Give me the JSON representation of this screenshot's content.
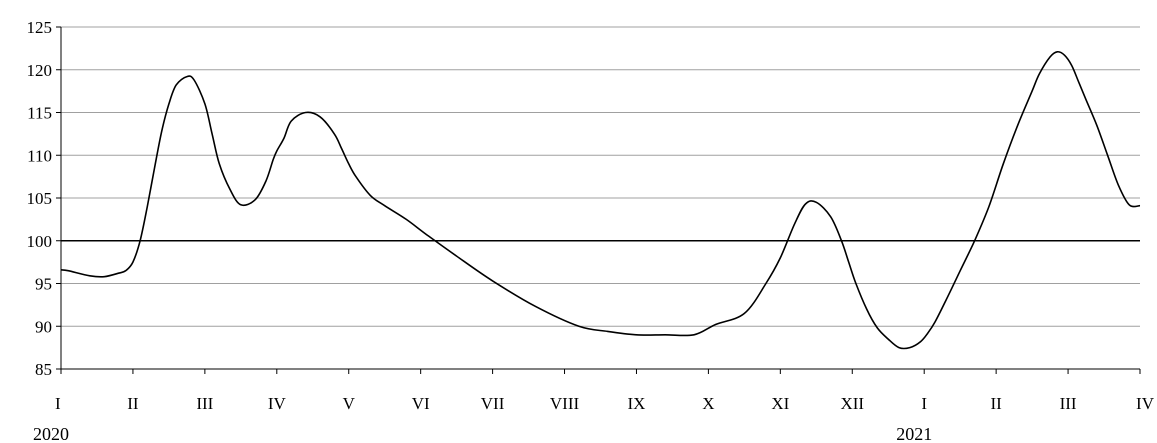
{
  "chart_data": {
    "type": "line",
    "title": "",
    "xlabel": "",
    "ylabel": "",
    "ylim": [
      85,
      125
    ],
    "y_ticks": [
      85,
      90,
      95,
      100,
      105,
      110,
      115,
      120,
      125
    ],
    "x_tick_labels": [
      "I",
      "II",
      "III",
      "IV",
      "V",
      "VI",
      "VII",
      "VIII",
      "IX",
      "X",
      "XI",
      "XII",
      "I",
      "II",
      "III",
      "IV"
    ],
    "year_labels": [
      {
        "label": "2020",
        "at_month_index": 0
      },
      {
        "label": "2021",
        "at_month_index": 12
      }
    ],
    "reference_line": 100,
    "grid": true,
    "legend": "none",
    "line_color": "#000000",
    "grid_color": "#a0a0a0",
    "series": [
      {
        "x": [
          0,
          0.1,
          0.4,
          0.6,
          0.8,
          0.9,
          1.0,
          1.1,
          1.2,
          1.3,
          1.4,
          1.5,
          1.6,
          1.75,
          1.85,
          2.0,
          2.1,
          2.2,
          2.35,
          2.5,
          2.7,
          2.85,
          2.95,
          3.0,
          3.1,
          3.2,
          3.4,
          3.6,
          3.8,
          3.9,
          4.0,
          4.1,
          4.3,
          4.5,
          4.8,
          5.1,
          5.5,
          6.0,
          6.6,
          7.2,
          7.6,
          8.0,
          8.4,
          8.8,
          9.1,
          9.5,
          9.8,
          10.0,
          10.2,
          10.35,
          10.5,
          10.7,
          10.85,
          10.95,
          11.05,
          11.2,
          11.35,
          11.5,
          11.65,
          11.8,
          11.95,
          12.05,
          12.15,
          12.3,
          12.5,
          12.7,
          12.9,
          13.1,
          13.3,
          13.5,
          13.6,
          13.75,
          13.85,
          13.95,
          14.05,
          14.15,
          14.25,
          14.4,
          14.55,
          14.7,
          14.85,
          15.0
        ],
        "values": [
          96.6,
          96.5,
          95.9,
          95.8,
          96.2,
          96.5,
          97.5,
          100.0,
          104.0,
          108.5,
          112.8,
          116.0,
          118.2,
          119.2,
          118.8,
          116.0,
          112.5,
          109.0,
          106.0,
          104.2,
          104.8,
          107.0,
          109.5,
          110.5,
          112.0,
          114.0,
          115.0,
          114.5,
          112.5,
          110.8,
          109.0,
          107.5,
          105.3,
          104.1,
          102.5,
          100.6,
          98.2,
          95.3,
          92.3,
          90.0,
          89.4,
          89.0,
          89.0,
          89.0,
          90.2,
          91.5,
          95.0,
          98.0,
          102.0,
          104.3,
          104.5,
          102.8,
          100.0,
          97.5,
          95.0,
          92.0,
          89.8,
          88.5,
          87.5,
          87.5,
          88.2,
          89.2,
          90.5,
          93.0,
          96.5,
          100.0,
          104.0,
          109.0,
          113.5,
          117.5,
          119.5,
          121.5,
          122.1,
          121.7,
          120.5,
          118.5,
          116.5,
          113.5,
          110.0,
          106.5,
          104.2,
          104.1
        ]
      }
    ]
  }
}
